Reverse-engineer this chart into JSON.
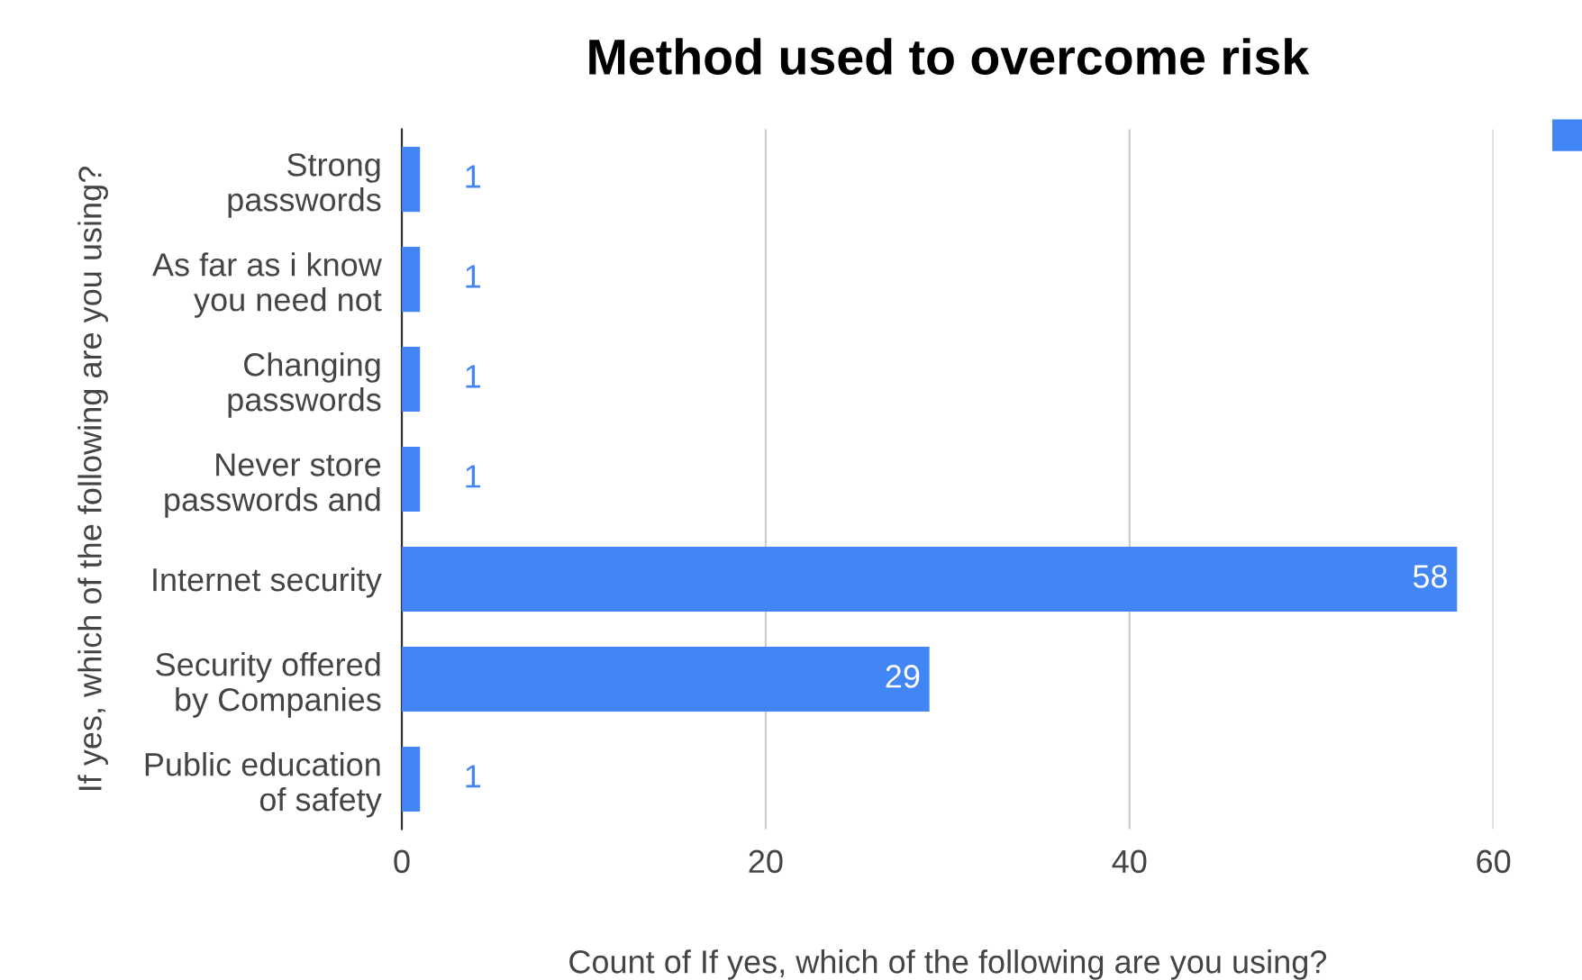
{
  "chart_data": {
    "type": "bar",
    "orientation": "horizontal",
    "title": "Method used to overcome risk",
    "xlabel": "Count of If yes, which of the following are you using?",
    "ylabel": "If yes, which of the following are you using?",
    "categories": [
      "Strong\npasswords",
      "As far as i know\nyou need not",
      "Changing\npasswords",
      "Never store\npasswords and",
      "Internet security",
      "Security offered\nby Companies",
      "Public education\nof safety"
    ],
    "series": [
      {
        "color": "#4285f4",
        "values": [
          1,
          1,
          1,
          1,
          58,
          29,
          1
        ]
      }
    ],
    "xlim": [
      0,
      60
    ],
    "xticks": [
      0,
      20,
      40,
      60
    ],
    "grid": "x",
    "data_labels": true
  }
}
